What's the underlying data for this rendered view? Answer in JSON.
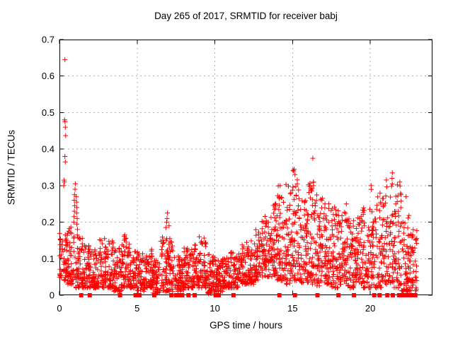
{
  "chart_data": {
    "type": "scatter",
    "title": "Day 265 of 2017, SRMTID for receiver babj",
    "xlabel": "GPS time / hours",
    "ylabel": "SRMTID / TECUs",
    "xlim": [
      0,
      24
    ],
    "ylim": [
      0,
      0.7
    ],
    "xticks": [
      {
        "v": 0,
        "label": "0"
      },
      {
        "v": 5,
        "label": "5"
      },
      {
        "v": 10,
        "label": "10"
      },
      {
        "v": 15,
        "label": "15"
      },
      {
        "v": 20,
        "label": "20"
      }
    ],
    "yticks": [
      {
        "v": 0.0,
        "label": "0"
      },
      {
        "v": 0.1,
        "label": "0.1"
      },
      {
        "v": 0.2,
        "label": "0.2"
      },
      {
        "v": 0.3,
        "label": "0.3"
      },
      {
        "v": 0.4,
        "label": "0.4"
      },
      {
        "v": 0.5,
        "label": "0.5"
      },
      {
        "v": 0.6,
        "label": "0.6"
      },
      {
        "v": 0.7,
        "label": "0.7"
      }
    ],
    "grid": true,
    "marker": "plus",
    "zero_marker": "filled-square",
    "marker_color": "#ff0000",
    "grid_color": "#b0b0b0",
    "axis_color": "#000000",
    "background_color": "#ffffff",
    "envelope_bins": [
      [
        0.0,
        0.5,
        0.04,
        0.17,
        55
      ],
      [
        0.5,
        1.0,
        0.03,
        0.19,
        55
      ],
      [
        1.0,
        1.5,
        0.02,
        0.16,
        55
      ],
      [
        1.5,
        2.0,
        0.02,
        0.14,
        55
      ],
      [
        2.0,
        2.5,
        0.02,
        0.13,
        55
      ],
      [
        2.5,
        3.0,
        0.02,
        0.155,
        55
      ],
      [
        3.0,
        3.5,
        0.02,
        0.15,
        55
      ],
      [
        3.5,
        4.0,
        0.01,
        0.13,
        55
      ],
      [
        4.0,
        4.5,
        0.02,
        0.165,
        55
      ],
      [
        4.5,
        5.0,
        0.02,
        0.12,
        55
      ],
      [
        5.0,
        5.5,
        0.01,
        0.12,
        55
      ],
      [
        5.5,
        6.0,
        0.02,
        0.13,
        55
      ],
      [
        6.0,
        6.5,
        0.004,
        0.1,
        55
      ],
      [
        6.5,
        7.0,
        0.01,
        0.16,
        55
      ],
      [
        7.0,
        7.5,
        0.01,
        0.15,
        50
      ],
      [
        7.5,
        8.0,
        0.01,
        0.11,
        55
      ],
      [
        8.0,
        8.5,
        0.02,
        0.13,
        55
      ],
      [
        8.5,
        9.0,
        0.02,
        0.15,
        55
      ],
      [
        9.0,
        9.5,
        0.02,
        0.16,
        55
      ],
      [
        9.5,
        10.0,
        0.004,
        0.12,
        60
      ],
      [
        10.0,
        10.5,
        0.01,
        0.1,
        55
      ],
      [
        10.5,
        11.0,
        0.02,
        0.11,
        55
      ],
      [
        11.0,
        11.5,
        0.02,
        0.12,
        55
      ],
      [
        11.5,
        12.0,
        0.03,
        0.14,
        55
      ],
      [
        12.0,
        12.5,
        0.03,
        0.15,
        55
      ],
      [
        12.5,
        13.0,
        0.04,
        0.18,
        55
      ],
      [
        13.0,
        13.5,
        0.05,
        0.22,
        60
      ],
      [
        13.5,
        14.0,
        0.05,
        0.26,
        60
      ],
      [
        14.0,
        14.5,
        0.04,
        0.3,
        60
      ],
      [
        14.5,
        15.0,
        0.03,
        0.31,
        60
      ],
      [
        15.0,
        15.5,
        0.04,
        0.345,
        60
      ],
      [
        15.5,
        16.0,
        0.03,
        0.26,
        60
      ],
      [
        16.0,
        16.5,
        0.03,
        0.31,
        60
      ],
      [
        16.5,
        17.0,
        0.02,
        0.3,
        60
      ],
      [
        17.0,
        17.5,
        0.03,
        0.26,
        60
      ],
      [
        17.5,
        18.0,
        0.02,
        0.25,
        60
      ],
      [
        18.0,
        18.5,
        0.03,
        0.25,
        60
      ],
      [
        18.5,
        19.0,
        0.02,
        0.21,
        55
      ],
      [
        19.0,
        19.5,
        0.03,
        0.22,
        55
      ],
      [
        19.5,
        20.0,
        0.02,
        0.24,
        55
      ],
      [
        20.0,
        20.5,
        0.02,
        0.3,
        55
      ],
      [
        20.5,
        21.0,
        0.02,
        0.28,
        55
      ],
      [
        21.0,
        21.5,
        0.03,
        0.33,
        55
      ],
      [
        21.5,
        22.0,
        0.02,
        0.31,
        55
      ],
      [
        22.0,
        22.5,
        0.01,
        0.22,
        60
      ],
      [
        22.5,
        23.0,
        0.01,
        0.18,
        50
      ]
    ],
    "outlier_points": [
      [
        0.35,
        0.645
      ],
      [
        0.33,
        0.48
      ],
      [
        0.36,
        0.475
      ],
      [
        0.38,
        0.46
      ],
      [
        0.4,
        0.437
      ],
      [
        0.35,
        0.38
      ],
      [
        0.38,
        0.365
      ],
      [
        0.3,
        0.315
      ],
      [
        0.32,
        0.31
      ],
      [
        0.28,
        0.3
      ],
      [
        0.92,
        0.2
      ],
      [
        0.94,
        0.215
      ],
      [
        0.96,
        0.23
      ],
      [
        0.98,
        0.245
      ],
      [
        0.95,
        0.26
      ],
      [
        0.97,
        0.275
      ],
      [
        1.0,
        0.29
      ],
      [
        1.02,
        0.305
      ],
      [
        1.08,
        0.27
      ],
      [
        1.1,
        0.255
      ],
      [
        1.12,
        0.24
      ],
      [
        1.1,
        0.225
      ],
      [
        1.14,
        0.21
      ],
      [
        1.12,
        0.195
      ],
      [
        1.16,
        0.18
      ],
      [
        1.15,
        0.165
      ],
      [
        2.9,
        0.155
      ],
      [
        4.2,
        0.165
      ],
      [
        6.85,
        0.185
      ],
      [
        6.9,
        0.2
      ],
      [
        6.92,
        0.21
      ],
      [
        6.95,
        0.225
      ],
      [
        7.05,
        0.19
      ],
      [
        7.1,
        0.155
      ],
      [
        9.0,
        0.16
      ],
      [
        14.2,
        0.3
      ],
      [
        15.1,
        0.345
      ],
      [
        15.15,
        0.33
      ],
      [
        16.3,
        0.375
      ],
      [
        16.35,
        0.31
      ],
      [
        20.05,
        0.3
      ],
      [
        21.4,
        0.32
      ],
      [
        21.42,
        0.335
      ],
      [
        21.9,
        0.31
      ],
      [
        22.3,
        0.27
      ]
    ],
    "zero_marker_times": [
      1.4,
      1.95,
      3.9,
      4.9,
      5.15,
      6.1,
      7.2,
      7.5,
      7.7,
      7.9,
      8.3,
      8.7,
      10.05,
      10.25,
      11.2,
      14.15,
      15.15,
      16.6,
      17.95,
      18.95,
      20.25,
      20.6,
      21.1,
      21.45,
      21.85,
      22.1,
      22.3,
      22.45,
      22.6,
      22.75,
      22.9
    ]
  }
}
